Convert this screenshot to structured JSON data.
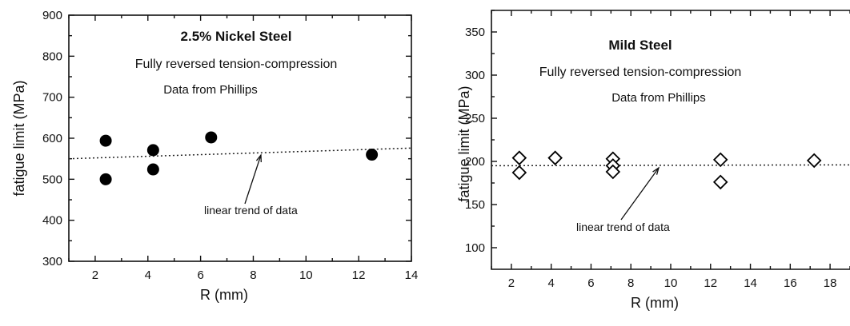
{
  "chart_data": [
    {
      "type": "scatter",
      "title": "2.5% Nickel Steel",
      "subtitle": "Fully reversed tension-compression",
      "source": "Data from Phillips",
      "annotation": "linear trend of data",
      "xlabel": "R (mm)",
      "ylabel": "fatigue limit (MPa)",
      "xlim": [
        1,
        14
      ],
      "ylim": [
        300,
        900
      ],
      "xticks": [
        2,
        4,
        6,
        8,
        10,
        12,
        14
      ],
      "yticks": [
        300,
        400,
        500,
        600,
        700,
        800,
        900
      ],
      "marker": "filled-circle",
      "points": [
        {
          "x": 2.4,
          "y": 594
        },
        {
          "x": 2.4,
          "y": 500
        },
        {
          "x": 4.2,
          "y": 571
        },
        {
          "x": 4.2,
          "y": 524
        },
        {
          "x": 6.4,
          "y": 602
        },
        {
          "x": 12.5,
          "y": 560
        }
      ],
      "trend": {
        "x": [
          1,
          14
        ],
        "y": [
          550,
          576
        ]
      },
      "grid": false
    },
    {
      "type": "scatter",
      "title": "Mild Steel",
      "subtitle": "Fully reversed tension-compression",
      "source": "Data from Phillips",
      "annotation": "linear trend of data",
      "xlabel": "R (mm)",
      "ylabel": "fatigue limit (MPa)",
      "xlim": [
        1,
        19
      ],
      "ylim": [
        75,
        375
      ],
      "xticks": [
        2,
        4,
        6,
        8,
        10,
        12,
        14,
        16,
        18
      ],
      "yticks": [
        100,
        150,
        200,
        250,
        300,
        350
      ],
      "marker": "open-diamond",
      "points": [
        {
          "x": 2.4,
          "y": 204
        },
        {
          "x": 2.4,
          "y": 187
        },
        {
          "x": 4.2,
          "y": 204
        },
        {
          "x": 7.1,
          "y": 203
        },
        {
          "x": 7.1,
          "y": 195
        },
        {
          "x": 7.1,
          "y": 188
        },
        {
          "x": 12.5,
          "y": 202
        },
        {
          "x": 12.5,
          "y": 176
        },
        {
          "x": 17.2,
          "y": 201
        }
      ],
      "trend": {
        "x": [
          1,
          19
        ],
        "y": [
          195,
          196
        ]
      },
      "grid": false
    }
  ]
}
